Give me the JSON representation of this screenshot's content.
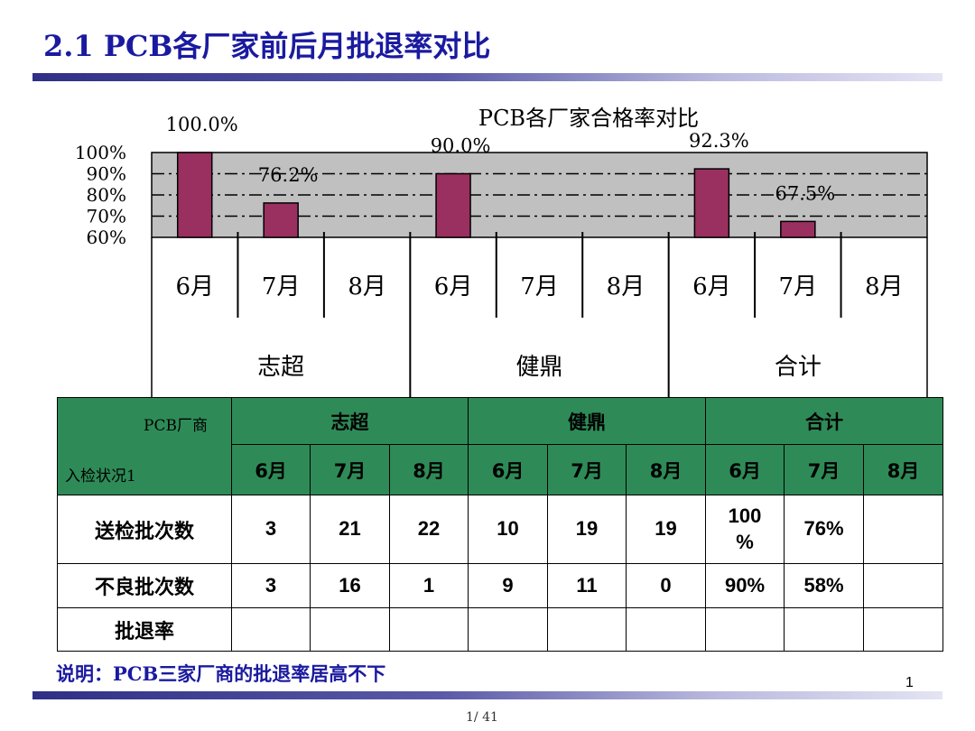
{
  "title": "2.1 PCB各厂家前后月批退率对比",
  "chart_data": {
    "type": "bar",
    "title": "PCB各厂家合格率对比",
    "y_ticks": [
      "100%",
      "90%",
      "80%",
      "70%",
      "60%"
    ],
    "ylim": [
      60,
      100
    ],
    "groups": [
      "志超",
      "健鼎",
      "合计"
    ],
    "months": [
      "6月",
      "7月",
      "8月"
    ],
    "values": [
      100.0,
      76.2,
      null,
      90.0,
      null,
      null,
      92.3,
      67.5,
      null
    ],
    "data_labels": [
      "100.0%",
      "76.2%",
      "",
      "90.0%",
      "",
      "",
      "92.3%",
      "67.5%",
      ""
    ],
    "grid": "dash-dot",
    "colors": {
      "bar": "#9a3060",
      "plot_bg": "#c0c0c0"
    }
  },
  "table": {
    "corner_top": "PCB厂商",
    "corner_bottom": "入检状况1",
    "groups": [
      "志超",
      "健鼎",
      "合计"
    ],
    "months": [
      "6月",
      "7月",
      "8月",
      "6月",
      "7月",
      "8月",
      "6月",
      "7月",
      "8月"
    ],
    "rows": [
      {
        "label": "送检批次数",
        "cells": [
          "3",
          "21",
          "22",
          "10",
          "19",
          "19",
          "100\n%",
          "76%",
          ""
        ]
      },
      {
        "label": "不良批次数",
        "cells": [
          "3",
          "16",
          "1",
          "9",
          "11",
          "0",
          "90%",
          "58%",
          ""
        ]
      },
      {
        "label": "批退率",
        "cells": [
          "",
          "",
          "",
          "",
          "",
          "",
          "",
          "",
          ""
        ]
      }
    ]
  },
  "note": "说明：PCB三家厂商的批退率居高不下",
  "slide_number": "1",
  "page_count": "1/ 41"
}
